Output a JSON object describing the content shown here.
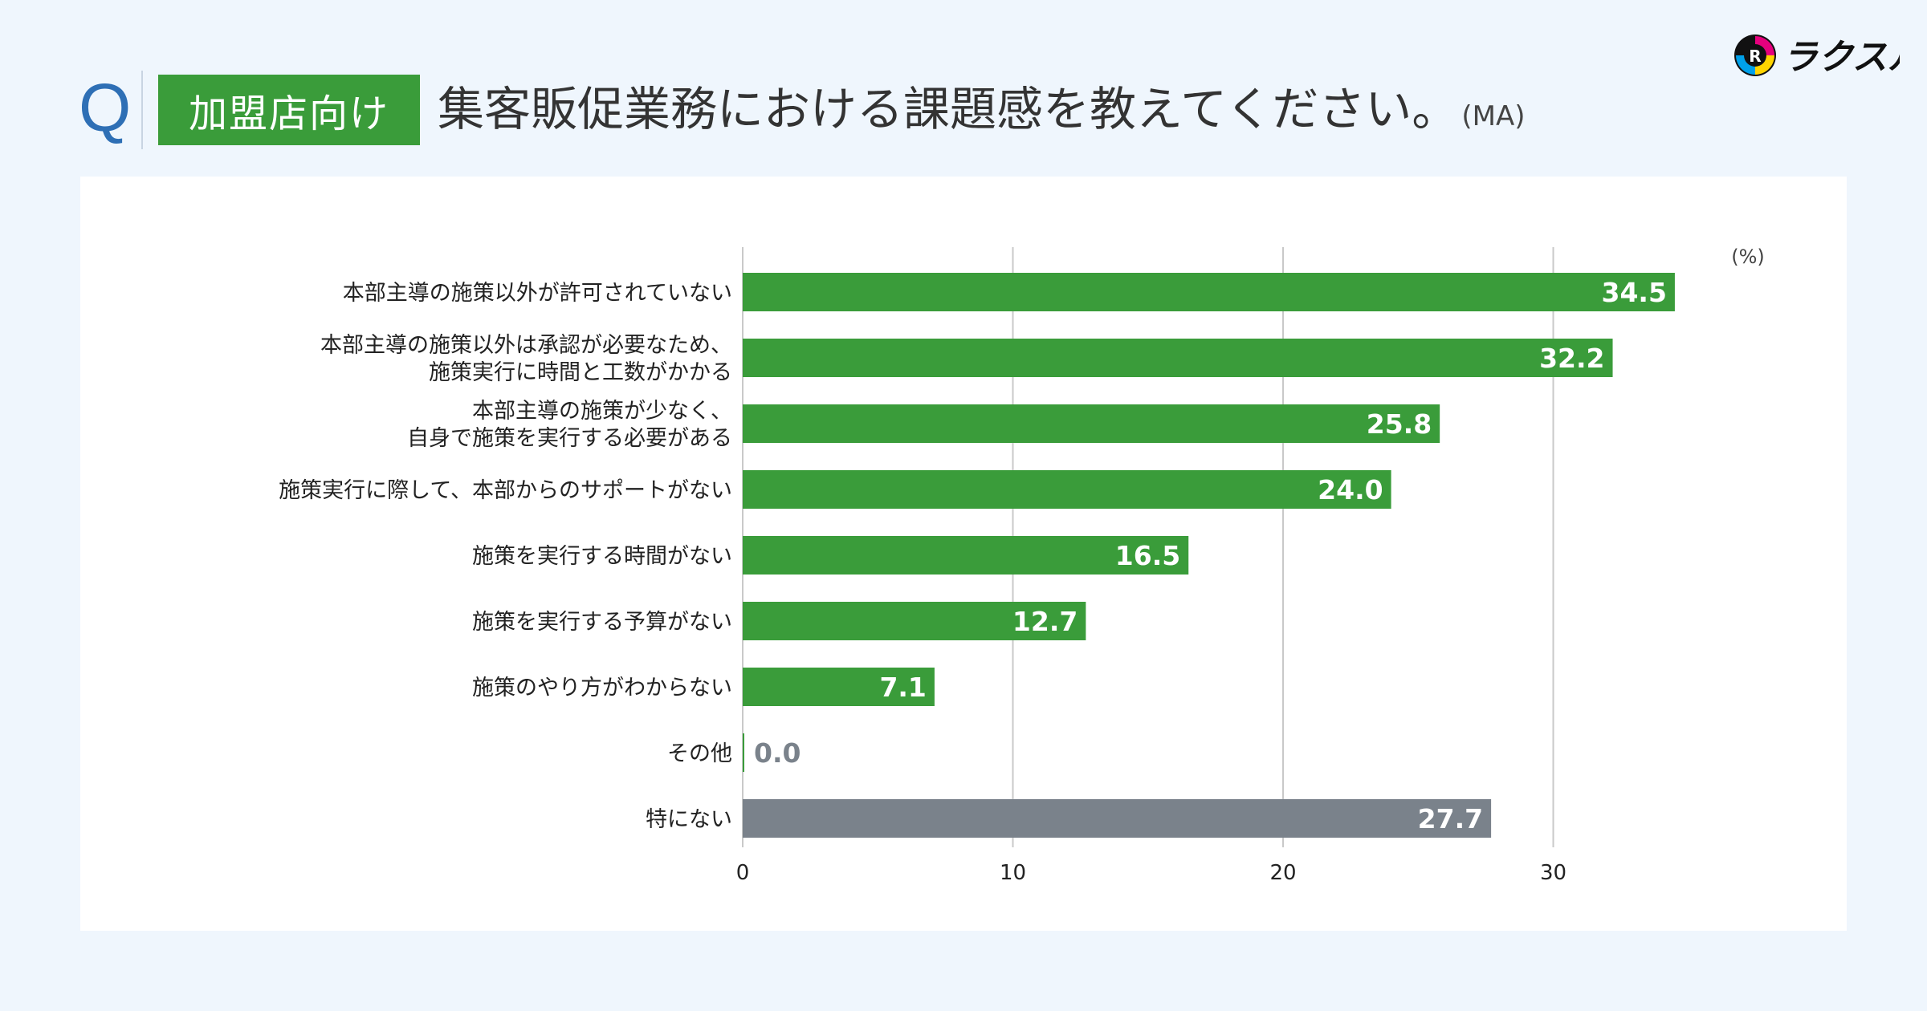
{
  "header": {
    "q_mark": "Q",
    "segment_badge": "加盟店向け",
    "question": "集客販促業務における課題感を教えてください。",
    "question_suffix": "(MA)"
  },
  "brand": {
    "name": "ラクスル",
    "icon": "raksul-logo-icon"
  },
  "colors": {
    "bar_green": "#3a9c3a",
    "bar_gray": "#7a828b",
    "value_gray": "#7a828b",
    "grid": "#c9c9c9"
  },
  "chart_data": {
    "type": "bar",
    "orientation": "horizontal",
    "unit": "(%)",
    "categories": [
      [
        "本部主導の施策以外が許可されていない"
      ],
      [
        "本部主導の施策以外は承認が必要なため、",
        "施策実行に時間と工数がかかる"
      ],
      [
        "本部主導の施策が少なく、",
        "自身で施策を実行する必要がある"
      ],
      [
        "施策実行に際して、本部からのサポートがない"
      ],
      [
        "施策を実行する時間がない"
      ],
      [
        "施策を実行する予算がない"
      ],
      [
        "施策のやり方がわからない"
      ],
      [
        "その他"
      ],
      [
        "特にない"
      ]
    ],
    "values": [
      34.5,
      32.2,
      25.8,
      24.0,
      16.5,
      12.7,
      7.1,
      0.0,
      27.7
    ],
    "value_labels": [
      "34.5",
      "32.2",
      "25.8",
      "24.0",
      "16.5",
      "12.7",
      "7.1",
      "0.0",
      "27.7"
    ],
    "bar_colors": [
      "green",
      "green",
      "green",
      "green",
      "green",
      "green",
      "green",
      "green",
      "gray"
    ],
    "xlim": [
      0,
      37
    ],
    "xticks": [
      0,
      10,
      20,
      30
    ],
    "xtick_labels": [
      "0",
      "10",
      "20",
      "30"
    ],
    "grid": true
  }
}
